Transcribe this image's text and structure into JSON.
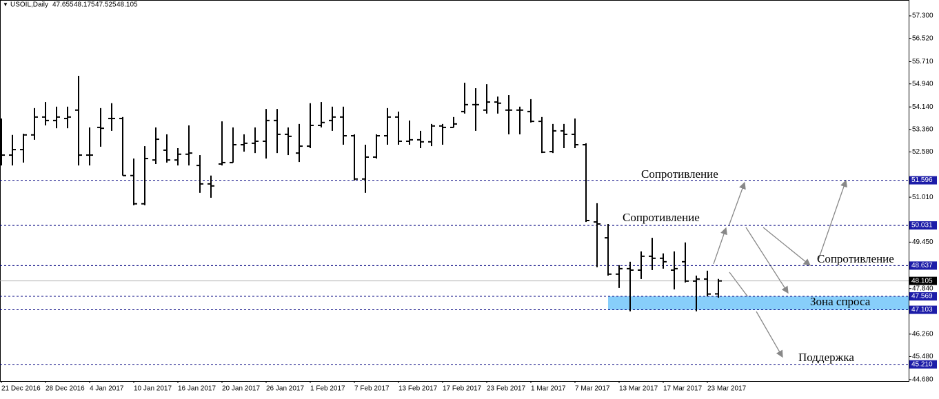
{
  "chart_data": {
    "type": "ohlc",
    "title": "USOIL,Daily",
    "color": "#000000",
    "categories": [
      "21 Dec 2016",
      null,
      null,
      null,
      "28 Dec 2016",
      null,
      null,
      null,
      "4 Jan 2017",
      null,
      null,
      null,
      "10 Jan 2017",
      null,
      null,
      null,
      "16 Jan 2017",
      null,
      null,
      null,
      "20 Jan 2017",
      null,
      null,
      null,
      "26 Jan 2017",
      null,
      null,
      null,
      "1 Feb 2017",
      null,
      null,
      null,
      "7 Feb 2017",
      null,
      null,
      null,
      "13 Feb 2017",
      null,
      null,
      null,
      "17 Feb 2017",
      null,
      null,
      null,
      "23 Feb 2017",
      null,
      null,
      null,
      "1 Mar 2017",
      null,
      null,
      null,
      "7 Mar 2017",
      null,
      null,
      null,
      "13 Mar 2017",
      null,
      null,
      null,
      "17 Mar 2017",
      null,
      null,
      null,
      "23 Mar 2017",
      null
    ],
    "open": [
      52.4,
      52.47,
      52.66,
      53.17,
      53.79,
      53.67,
      53.74,
      54.03,
      52.47,
      53.43,
      53.74,
      53.74,
      51.76,
      50.78,
      52.3,
      52.64,
      52.3,
      52.5,
      52.11,
      51.47,
      52.16,
      52.21,
      52.83,
      52.88,
      52.95,
      53.67,
      53.19,
      52.54,
      52.78,
      53.5,
      53.67,
      53.79,
      53.14,
      51.64,
      52.4,
      53.14,
      53.79,
      52.95,
      53.0,
      52.93,
      53.48,
      53.43,
      53.98,
      54.22,
      54.03,
      54.31,
      54.03,
      54.03,
      53.98,
      53.64,
      52.59,
      53.31,
      53.19,
      52.83,
      50.15,
      49.6,
      48.34,
      48.53,
      48.48,
      48.96,
      48.89,
      48.48,
      48.77,
      48.1,
      48.17,
      47.655
    ],
    "high": [
      53.74,
      53.17,
      53.21,
      54.1,
      54.31,
      54.15,
      54.15,
      55.22,
      53.43,
      54.1,
      54.27,
      53.79,
      52.35,
      52.78,
      53.43,
      53.19,
      52.71,
      53.5,
      52.47,
      51.76,
      53.64,
      53.43,
      53.19,
      53.43,
      54.07,
      54.07,
      53.43,
      53.55,
      54.27,
      54.31,
      54.15,
      54.15,
      53.19,
      52.83,
      53.19,
      54.1,
      53.98,
      53.67,
      53.31,
      53.55,
      53.55,
      53.79,
      54.98,
      54.79,
      54.93,
      54.5,
      54.55,
      54.15,
      54.41,
      53.79,
      53.55,
      53.55,
      53.74,
      52.88,
      50.8,
      50.08,
      48.65,
      48.77,
      49.13,
      49.6,
      49.06,
      49.13,
      49.44,
      48.29,
      48.46,
      48.175
    ],
    "low": [
      52.11,
      52.11,
      52.21,
      53.0,
      53.5,
      53.4,
      53.4,
      52.11,
      52.11,
      52.76,
      53.31,
      51.76,
      50.73,
      50.73,
      52.16,
      52.21,
      52.11,
      52.11,
      51.16,
      50.99,
      52.11,
      52.21,
      52.59,
      52.54,
      52.35,
      52.54,
      52.47,
      52.23,
      52.71,
      53.43,
      53.31,
      52.83,
      51.59,
      51.16,
      52.35,
      52.83,
      52.83,
      52.83,
      52.71,
      52.78,
      52.83,
      53.43,
      53.91,
      53.31,
      53.91,
      53.91,
      53.19,
      53.19,
      53.6,
      52.54,
      52.54,
      52.71,
      52.71,
      50.15,
      48.58,
      48.29,
      47.86,
      47.05,
      48.17,
      48.48,
      48.53,
      47.81,
      48.05,
      47.05,
      47.57,
      47.525
    ],
    "close": [
      52.47,
      52.66,
      53.17,
      53.79,
      53.67,
      53.79,
      53.79,
      52.47,
      52.47,
      53.4,
      53.74,
      51.76,
      50.78,
      52.35,
      53.02,
      52.3,
      52.5,
      52.54,
      51.47,
      51.4,
      52.21,
      52.83,
      52.88,
      52.95,
      53.67,
      53.19,
      53.12,
      52.78,
      53.5,
      53.6,
      53.79,
      53.14,
      51.64,
      52.4,
      53.14,
      53.79,
      52.95,
      53.0,
      52.93,
      53.48,
      53.43,
      53.55,
      54.22,
      54.22,
      54.31,
      54.27,
      54.03,
      54.03,
      53.64,
      52.57,
      53.31,
      53.19,
      52.83,
      50.2,
      50.08,
      48.34,
      48.53,
      48.48,
      48.96,
      48.89,
      48.77,
      48.53,
      48.1,
      48.17,
      47.65,
      48.105
    ],
    "ylim": [
      44.63,
      57.85
    ],
    "yticks": [
      {
        "value": 57.3,
        "label": "57.300"
      },
      {
        "value": 56.52,
        "label": "56.520"
      },
      {
        "value": 55.71,
        "label": "55.710"
      },
      {
        "value": 54.94,
        "label": "54.940"
      },
      {
        "value": 54.14,
        "label": "54.140"
      },
      {
        "value": 53.36,
        "label": "53.360"
      },
      {
        "value": 52.58,
        "label": "52.580"
      },
      {
        "value": 51.01,
        "label": "51.010"
      },
      {
        "value": 49.45,
        "label": "49.450"
      },
      {
        "value": 47.84,
        "label": "47.840"
      },
      {
        "value": 46.26,
        "label": "46.260"
      },
      {
        "value": 45.48,
        "label": "45.480"
      },
      {
        "value": 44.68,
        "label": "44.680"
      }
    ],
    "levels": [
      51.596,
      50.031,
      48.637,
      47.569,
      47.103,
      {
        "value": 45.21,
        "label": "45.210"
      }
    ],
    "demand_zone": {
      "label": "Зона спроса",
      "low": 47.103,
      "high": 47.569,
      "color": "#87cefa"
    },
    "annotations": [
      "Сопротивление",
      "Сопротивление",
      "Сопротивление",
      "Поддержка"
    ]
  }
}
